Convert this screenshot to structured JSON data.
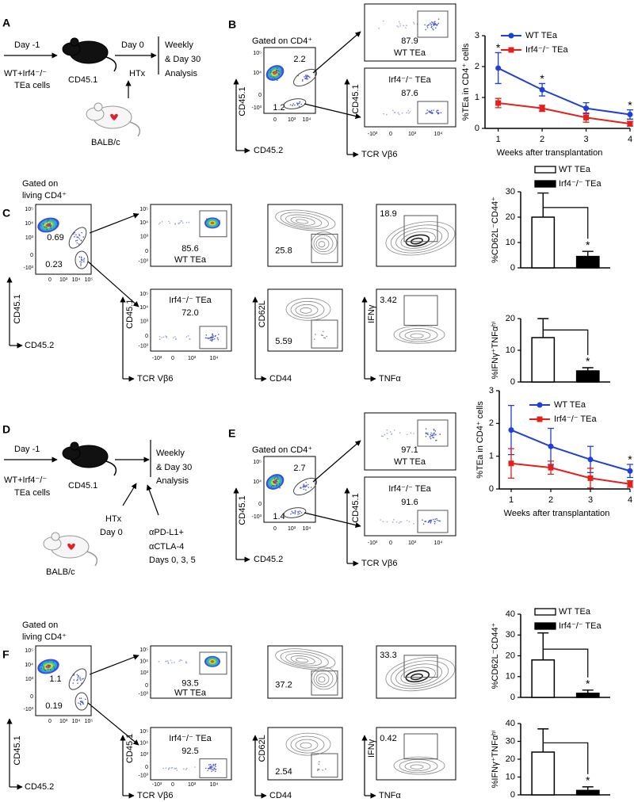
{
  "ticks": {
    "p5": "10⁵",
    "p4": "10⁴",
    "p3": "10³",
    "z": "0",
    "n3": "-10³"
  },
  "panel_a": {
    "label": "A",
    "day_before": "Day -1",
    "donor_cells": [
      "WT+Irf4⁻/⁻",
      "TEa cells"
    ],
    "recipient": "CD45.1",
    "day_zero": "Day 0",
    "transplant": "HTx",
    "readout": [
      "Weekly",
      "& Day 30",
      "Analysis"
    ],
    "donor_strain": "BALB/c"
  },
  "panel_b": {
    "label": "B",
    "gate_note": "Gated on CD4⁺",
    "x_axis": "CD45.2",
    "y_axis": "CD45.1",
    "gates": [
      "2.2",
      "1.2"
    ],
    "sort_x_axis": "TCR Vβ6",
    "sort_y_axis": "CD45.1",
    "wt_plot": {
      "value": "87.9",
      "name": "WT TEa"
    },
    "ko_plot": {
      "name": "Irf4⁻/⁻ TEa",
      "value": "87.6"
    }
  },
  "panel_c": {
    "label": "C",
    "gate_note": [
      "Gated on",
      "living CD4⁺"
    ],
    "x_axis": "CD45.2",
    "y_axis": "CD45.1",
    "gates": [
      "0.69",
      "0.23"
    ],
    "wt_row": {
      "name": "WT TEa",
      "tcr": "85.6",
      "cd62l_cd44": "25.8",
      "ifng_tnfa": "18.9"
    },
    "ko_row": {
      "name": "Irf4⁻/⁻ TEa",
      "tcr": "72.0",
      "cd62l_cd44": "5.59",
      "ifng_tnfa": "3.42"
    },
    "columns": [
      {
        "x_axis": "TCR Vβ6",
        "y_axis": "CD45.1"
      },
      {
        "x_axis": "CD44",
        "y_axis": "CD62L"
      },
      {
        "x_axis": "TNFα",
        "y_axis": "IFNγ"
      }
    ]
  },
  "panel_d": {
    "label": "D",
    "day_before": "Day -1",
    "donor_cells": [
      "WT+Irf4⁻/⁻",
      "TEa cells"
    ],
    "recipient": "CD45.1",
    "readout": [
      "Weekly",
      "& Day 30",
      "Analysis"
    ],
    "transplant": [
      "HTx",
      "Day 0"
    ],
    "treatment": [
      "αPD-L1+",
      "αCTLA-4",
      "Days 0, 3, 5"
    ],
    "donor_strain": "BALB/c"
  },
  "panel_e": {
    "label": "E",
    "gate_note": "Gated on CD4⁺",
    "x_axis": "CD45.2",
    "y_axis": "CD45.1",
    "gates": [
      "2.7",
      "1.4"
    ],
    "sort_x_axis": "TCR Vβ6",
    "sort_y_axis": "CD45.1",
    "wt_plot": {
      "value": "97.1",
      "name": "WT TEa"
    },
    "ko_plot": {
      "name": "Irf4⁻/⁻ TEa",
      "value": "91.6"
    }
  },
  "panel_f": {
    "label": "F",
    "gate_note": [
      "Gated on",
      "living CD4⁺"
    ],
    "x_axis": "CD45.2",
    "y_axis": "CD45.1",
    "gates": [
      "1.1",
      "0.19"
    ],
    "wt_row": {
      "name": "WT TEa",
      "tcr": "93.5",
      "cd62l_cd44": "37.2",
      "ifng_tnfa": "33.3"
    },
    "ko_row": {
      "name": "Irf4⁻/⁻ TEa",
      "tcr": "92.5",
      "cd62l_cd44": "2.54",
      "ifng_tnfa": "0.42"
    },
    "columns": [
      {
        "x_axis": "TCR Vβ6",
        "y_axis": "CD45.1"
      },
      {
        "x_axis": "CD44",
        "y_axis": "CD62L"
      },
      {
        "x_axis": "TNFα",
        "y_axis": "IFNγ"
      }
    ]
  },
  "chart_data": [
    {
      "type": "line",
      "y_label": "%TEa in CD4⁺ cells",
      "x_label": "Weeks after transplantation",
      "x": [
        1,
        2,
        3,
        4
      ],
      "xlim": [
        0.7,
        4
      ],
      "xticks": [
        1,
        2,
        3,
        4
      ],
      "ylim": [
        0,
        3
      ],
      "yticks": [
        0,
        1,
        2,
        3
      ],
      "legend": "top-right",
      "series": [
        {
          "name": "WT TEa",
          "color": "#1f3fd6",
          "marker": "circle",
          "values": [
            1.95,
            1.25,
            0.65,
            0.45
          ],
          "errors": [
            0.5,
            0.2,
            0.18,
            0.15
          ]
        },
        {
          "name": "Irf4⁻/⁻ TEa",
          "color": "#e3201b",
          "marker": "square",
          "values": [
            0.82,
            0.65,
            0.35,
            0.15
          ],
          "errors": [
            0.15,
            0.1,
            0.15,
            0.08
          ]
        }
      ],
      "annotations": [
        {
          "x": 1,
          "text": "*"
        },
        {
          "x": 2,
          "text": "*"
        },
        {
          "x": 4,
          "text": "*"
        }
      ]
    },
    {
      "type": "bar",
      "y_label": "%CD62L⁻CD44⁺",
      "categories": [
        null
      ],
      "ylim": [
        0,
        30
      ],
      "yticks": [
        0,
        10,
        20,
        30
      ],
      "legend": "top",
      "series": [
        {
          "name": "WT TEa",
          "color": "#ffffff",
          "values": [
            20
          ],
          "errors": [
            9.5
          ]
        },
        {
          "name": "Irf4⁻/⁻ TEa",
          "color": "#000000",
          "values": [
            4.5
          ],
          "errors": [
            2
          ]
        }
      ],
      "annotation": "*"
    },
    {
      "type": "bar",
      "y_label": "%IFNγ⁺TNFαʰⁱ",
      "categories": [
        null
      ],
      "ylim": [
        0,
        20
      ],
      "yticks": [
        0,
        10,
        20
      ],
      "series": [
        {
          "name": "WT TEa",
          "color": "#ffffff",
          "values": [
            14
          ],
          "errors": [
            6
          ]
        },
        {
          "name": "Irf4⁻/⁻ TEa",
          "color": "#000000",
          "values": [
            3.5
          ],
          "errors": [
            1
          ]
        }
      ],
      "annotation": "*"
    },
    {
      "type": "line",
      "y_label": "%TEa in CD4⁺ cells",
      "x_label": "Weeks after transplantation",
      "x": [
        1,
        2,
        3,
        4
      ],
      "xlim": [
        0.7,
        4
      ],
      "xticks": [
        1,
        2,
        3,
        4
      ],
      "ylim": [
        0,
        3
      ],
      "yticks": [
        0,
        1,
        2,
        3
      ],
      "legend": "top-right",
      "series": [
        {
          "name": "WT TEa",
          "color": "#1f3fd6",
          "marker": "circle",
          "values": [
            1.8,
            1.3,
            0.9,
            0.55
          ],
          "errors": [
            0.75,
            0.55,
            0.4,
            0.2
          ]
        },
        {
          "name": "Irf4⁻/⁻ TEa",
          "color": "#e3201b",
          "marker": "square",
          "values": [
            0.78,
            0.65,
            0.33,
            0.15
          ],
          "errors": [
            0.45,
            0.2,
            0.3,
            0.1
          ]
        }
      ],
      "annotations": [
        {
          "x": 4,
          "text": "*"
        }
      ]
    },
    {
      "type": "bar",
      "y_label": "%CD62L⁻CD44⁺",
      "categories": [
        null
      ],
      "ylim": [
        0,
        40
      ],
      "yticks": [
        0,
        10,
        20,
        30,
        40
      ],
      "legend": "top",
      "series": [
        {
          "name": "WT TEa",
          "color": "#ffffff",
          "values": [
            18
          ],
          "errors": [
            13
          ]
        },
        {
          "name": "Irf4⁻/⁻ TEa",
          "color": "#000000",
          "values": [
            2
          ],
          "errors": [
            1.5
          ]
        }
      ],
      "annotation": "*"
    },
    {
      "type": "bar",
      "y_label": "%IFNγ⁺TNFαʰⁱ",
      "categories": [
        null
      ],
      "ylim": [
        0,
        40
      ],
      "yticks": [
        0,
        10,
        20,
        30,
        40
      ],
      "series": [
        {
          "name": "WT TEa",
          "color": "#ffffff",
          "values": [
            24
          ],
          "errors": [
            13
          ]
        },
        {
          "name": "Irf4⁻/⁻ TEa",
          "color": "#000000",
          "values": [
            2.5
          ],
          "errors": [
            2
          ]
        }
      ],
      "annotation": "*"
    }
  ]
}
